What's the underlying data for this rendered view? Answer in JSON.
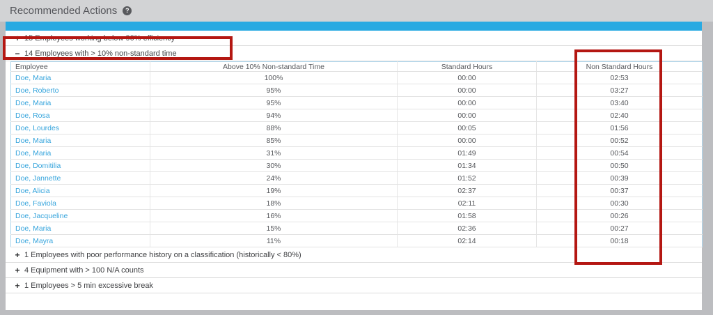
{
  "header": {
    "title": "Recommended Actions",
    "help_icon": "?"
  },
  "colors": {
    "accent_bar": "#29aae2",
    "annotation_red": "#b41712",
    "employee_link_blue": "#35a4dc",
    "page_background_gray": "#bcbdc0"
  },
  "sections": {
    "efficiency": {
      "icon": "+",
      "label": "15 Employees working below 90% efficiency"
    },
    "non_standard": {
      "icon": "−",
      "label": "14 Employees with > 10% non-standard time"
    },
    "poor_history": {
      "icon": "+",
      "label": "1 Employees with poor performance history on a classification (historically < 80%)"
    },
    "equipment": {
      "icon": "+",
      "label": "4 Equipment with > 100 N/A counts"
    },
    "excessive_break": {
      "icon": "+",
      "label": "1 Employees > 5 min excessive break"
    }
  },
  "table": {
    "columns": [
      "Employee",
      "Above 10% Non-standard Time",
      "Standard Hours",
      "Non Standard Hours"
    ],
    "rows": [
      [
        "Doe, Maria",
        "100%",
        "00:00",
        "02:53"
      ],
      [
        "Doe, Roberto",
        "95%",
        "00:00",
        "03:27"
      ],
      [
        "Doe, Maria",
        "95%",
        "00:00",
        "03:40"
      ],
      [
        "Doe, Rosa",
        "94%",
        "00:00",
        "02:40"
      ],
      [
        "Doe, Lourdes",
        "88%",
        "00:05",
        "01:56"
      ],
      [
        "Doe, Maria",
        "85%",
        "00:00",
        "00:52"
      ],
      [
        "Doe, Maria",
        "31%",
        "01:49",
        "00:54"
      ],
      [
        "Doe, Domitilia",
        "30%",
        "01:34",
        "00:50"
      ],
      [
        "Doe, Jannette",
        "24%",
        "01:52",
        "00:39"
      ],
      [
        "Doe, Alicia",
        "19%",
        "02:37",
        "00:37"
      ],
      [
        "Doe, Faviola",
        "18%",
        "02:11",
        "00:30"
      ],
      [
        "Doe, Jacqueline",
        "16%",
        "01:58",
        "00:26"
      ],
      [
        "Doe, Maria",
        "15%",
        "02:36",
        "00:27"
      ],
      [
        "Doe, Mayra",
        "11%",
        "02:14",
        "00:18"
      ]
    ]
  }
}
